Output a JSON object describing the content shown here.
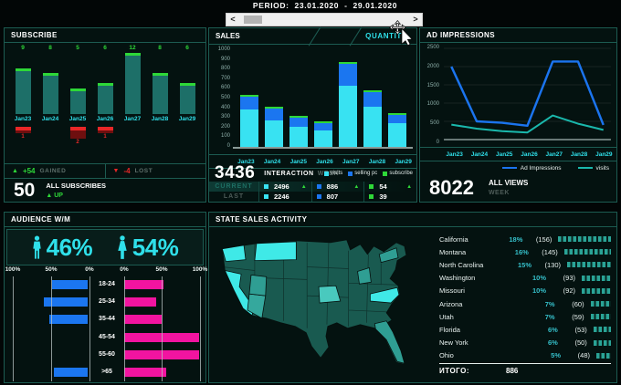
{
  "colors": {
    "cyan": "#2fe0ea",
    "teal_bar": "#1d6f68",
    "green": "#2ed838",
    "red": "#e82727",
    "blue": "#1b76f0",
    "sales_cyan": "#38e2f2",
    "pink": "#f214a0",
    "panel_border": "#1c5b51",
    "gauge": "#2aa396",
    "map_base": "#195a50",
    "map_bright": "#3fe9e7",
    "map_medium": "#2f9e93"
  },
  "period": {
    "label": "PERIOD:",
    "from": "23.01.2020",
    "separator": "-",
    "to": "29.01.2020",
    "left_arrow": "<",
    "right_arrow": ">"
  },
  "subscribe": {
    "title": "SUBSCRIBE",
    "gained": {
      "icon": "▲",
      "value": "+54",
      "label": "GAINED"
    },
    "lost": {
      "icon": "▼",
      "value": "-4",
      "label": "LOST"
    },
    "total": {
      "value": "50",
      "label": "ALL SUBSCRIBES",
      "trend_icon": "▲",
      "trend": "UP"
    }
  },
  "sales": {
    "tab_sales": "SALES",
    "tab_quantity": "QUANTITY",
    "total": "3436",
    "total_label": "INTERACTION",
    "total_sublabel": "WEEK",
    "legend": [
      {
        "label": "visits",
        "color": "#38e2f2"
      },
      {
        "label": "selling pc",
        "color": "#1b76f0"
      },
      {
        "label": "subscribe",
        "color": "#2ed838"
      }
    ],
    "table": {
      "rows": [
        {
          "label": "CURRENT",
          "cells": [
            {
              "value": "2496",
              "color": "#38e2f2",
              "up": true
            },
            {
              "value": "886",
              "color": "#1b76f0",
              "up": true
            },
            {
              "value": "54",
              "color": "#2ed838",
              "up": true
            }
          ]
        },
        {
          "label": "LAST",
          "cells": [
            {
              "value": "2246",
              "color": "#38e2f2",
              "up": false
            },
            {
              "value": "807",
              "color": "#1b76f0",
              "up": false
            },
            {
              "value": "39",
              "color": "#2ed838",
              "up": false
            }
          ]
        }
      ]
    }
  },
  "ad": {
    "title": "AD IMPRESSIONS",
    "legend": [
      {
        "label": "Ad Impressions",
        "color": "#1b74ee"
      },
      {
        "label": "visits",
        "color": "#1ab8ac"
      }
    ],
    "total": "8022",
    "total_label": "ALL VIEWS",
    "total_sublabel": "WEEK"
  },
  "audience": {
    "title": "AUDIENCE W/M",
    "male_pct": "46%",
    "female_pct": "54%",
    "axis_labels": [
      "100%",
      "50%",
      "0%",
      "0%",
      "50%",
      "100%"
    ]
  },
  "states": {
    "title": "STATE SALES ACTIVITY",
    "rows": [
      {
        "name": "California",
        "pct": "18%",
        "count": "(156)",
        "pct_num": 18
      },
      {
        "name": "Montana",
        "pct": "16%",
        "count": "(145)",
        "pct_num": 16
      },
      {
        "name": "North Carolina",
        "pct": "15%",
        "count": "(130)",
        "pct_num": 15
      },
      {
        "name": "Washington",
        "pct": "10%",
        "count": "(93)",
        "pct_num": 10
      },
      {
        "name": "Missouri",
        "pct": "10%",
        "count": "(92)",
        "pct_num": 10
      },
      {
        "name": "Arizona",
        "pct": "7%",
        "count": "(60)",
        "pct_num": 7
      },
      {
        "name": "Utah",
        "pct": "7%",
        "count": "(59)",
        "pct_num": 7
      },
      {
        "name": "Florida",
        "pct": "6%",
        "count": "(53)",
        "pct_num": 6
      },
      {
        "name": "New York",
        "pct": "6%",
        "count": "(50)",
        "pct_num": 6
      },
      {
        "name": "Ohio",
        "pct": "5%",
        "count": "(48)",
        "pct_num": 5
      }
    ],
    "total_label": "ИТОГО:",
    "total_value": "886"
  },
  "chart_data": [
    {
      "type": "bar",
      "title": "SUBSCRIBE",
      "categories": [
        "Jan23",
        "Jan24",
        "Jan25",
        "Jan26",
        "Jan27",
        "Jan28",
        "Jan29"
      ],
      "series": [
        {
          "name": "gained",
          "values": [
            9,
            8,
            5,
            6,
            12,
            8,
            6
          ]
        },
        {
          "name": "lost",
          "values": [
            1,
            0,
            2,
            1,
            0,
            0,
            0
          ]
        }
      ]
    },
    {
      "type": "bar",
      "stacked": true,
      "title": "SALES",
      "categories": [
        "Jan23",
        "Jan24",
        "Jan25",
        "Jan26",
        "Jan27",
        "Jan28",
        "Jan29"
      ],
      "series": [
        {
          "name": "visits",
          "values": [
            410,
            300,
            230,
            195,
            660,
            435,
            266
          ]
        },
        {
          "name": "selling pc",
          "values": [
            135,
            115,
            90,
            75,
            230,
            155,
            86
          ]
        },
        {
          "name": "subscribe",
          "values": [
            9,
            8,
            5,
            6,
            12,
            8,
            6
          ]
        }
      ],
      "ylim": [
        0,
        1000
      ],
      "yticks": [
        0,
        100,
        200,
        300,
        400,
        500,
        600,
        700,
        800,
        900,
        1000
      ]
    },
    {
      "type": "line",
      "title": "AD IMPRESSIONS",
      "categories": [
        "Jan23",
        "Jan24",
        "Jan25",
        "Jan26",
        "Jan27",
        "Jan28",
        "Jan29"
      ],
      "series": [
        {
          "name": "Ad Impressions",
          "values": [
            2000,
            500,
            460,
            380,
            2140,
            2140,
            402
          ]
        },
        {
          "name": "visits",
          "values": [
            410,
            300,
            230,
            195,
            660,
            435,
            266
          ]
        }
      ],
      "ylim": [
        0,
        2500
      ],
      "yticks": [
        0,
        500,
        1000,
        1500,
        2000,
        2500
      ],
      "grid": true,
      "legend_position": "bottom"
    },
    {
      "type": "bar",
      "orientation": "horizontal",
      "title": "AUDIENCE W/M",
      "categories": [
        "18-24",
        "25-34",
        "35-44",
        "45-54",
        "55-60",
        ">65"
      ],
      "series": [
        {
          "name": "men",
          "values": [
            47,
            57,
            50,
            0,
            0,
            44
          ]
        },
        {
          "name": "women",
          "values": [
            53,
            43,
            50,
            100,
            100,
            56
          ]
        }
      ],
      "xlim": [
        0,
        100
      ]
    },
    {
      "type": "table",
      "title": "STATE SALES ACTIVITY",
      "columns": [
        "state",
        "percent",
        "count"
      ],
      "rows": [
        [
          "California",
          18,
          156
        ],
        [
          "Montana",
          16,
          145
        ],
        [
          "North Carolina",
          15,
          130
        ],
        [
          "Washington",
          10,
          93
        ],
        [
          "Missouri",
          10,
          92
        ],
        [
          "Arizona",
          7,
          60
        ],
        [
          "Utah",
          7,
          59
        ],
        [
          "Florida",
          6,
          53
        ],
        [
          "New York",
          6,
          50
        ],
        [
          "Ohio",
          5,
          48
        ]
      ],
      "total": 886
    }
  ]
}
